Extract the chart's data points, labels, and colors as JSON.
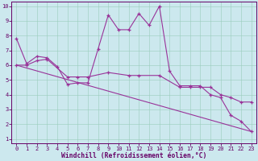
{
  "xlabel": "Windchill (Refroidissement éolien,°C)",
  "bg_color": "#cce8ee",
  "line_color": "#993399",
  "grid_color": "#99ccbb",
  "xlim_min": -0.5,
  "xlim_max": 23.5,
  "ylim_min": 0.7,
  "ylim_max": 10.3,
  "xticks": [
    0,
    1,
    2,
    3,
    4,
    5,
    6,
    7,
    8,
    9,
    10,
    11,
    12,
    13,
    14,
    15,
    16,
    17,
    18,
    19,
    20,
    21,
    22,
    23
  ],
  "yticks": [
    1,
    2,
    3,
    4,
    5,
    6,
    7,
    8,
    9,
    10
  ],
  "line1_x": [
    0,
    1,
    2,
    3,
    4,
    5,
    6,
    7,
    8,
    9,
    10,
    11,
    12,
    13,
    14,
    15,
    16,
    17,
    18,
    19,
    20,
    21,
    22,
    23
  ],
  "line1_y": [
    7.8,
    6.1,
    6.6,
    6.5,
    5.9,
    4.7,
    4.8,
    4.8,
    7.1,
    9.4,
    8.4,
    8.4,
    9.5,
    8.7,
    10.0,
    5.6,
    4.6,
    4.6,
    4.6,
    4.0,
    3.8,
    2.6,
    2.2,
    1.5
  ],
  "line2_x": [
    0,
    1,
    2,
    3,
    5,
    6,
    7,
    9,
    11,
    12,
    14,
    16,
    17,
    18,
    19,
    20,
    21,
    22,
    23
  ],
  "line2_y": [
    6.0,
    6.0,
    6.3,
    6.4,
    5.2,
    5.2,
    5.2,
    5.5,
    5.3,
    5.3,
    5.3,
    4.5,
    4.5,
    4.5,
    4.5,
    4.0,
    3.8,
    3.5,
    3.5
  ],
  "line3_x": [
    0,
    23
  ],
  "line3_y": [
    6.0,
    1.5
  ],
  "label_color": "#660066",
  "tick_fontsize": 5.0,
  "xlabel_fontsize": 5.8
}
